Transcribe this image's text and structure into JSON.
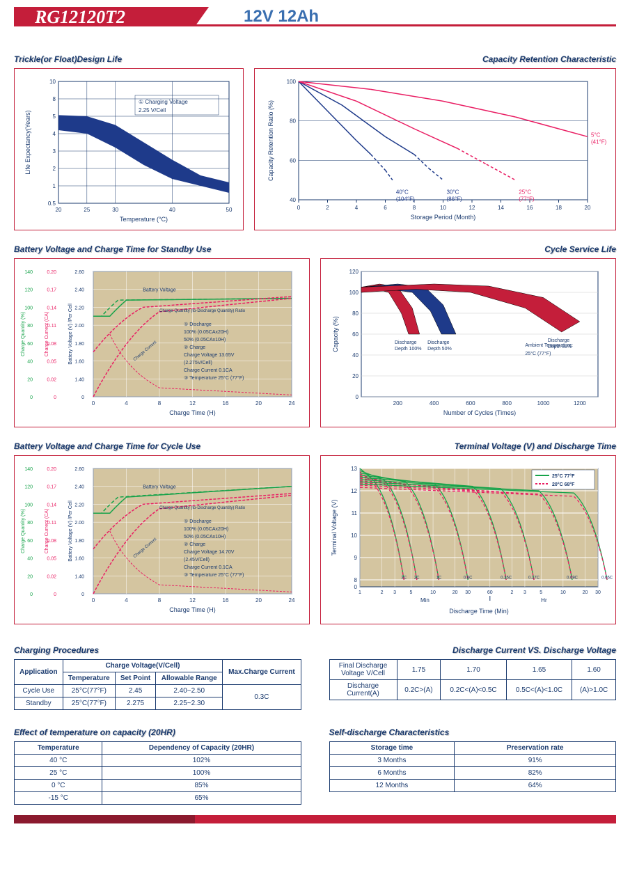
{
  "header": {
    "model": "RG12120T2",
    "spec": "12V 12Ah"
  },
  "chart1": {
    "title": "Trickle(or Float)Design Life",
    "xlabel": "Temperature (°C)",
    "ylabel": "Life Expectancy(Years)",
    "xticks": [
      "20",
      "25",
      "30",
      "40",
      "50"
    ],
    "yticks": [
      "0.5",
      "1",
      "2",
      "3",
      "4",
      "5",
      "8",
      "10"
    ],
    "legend": "① Charging Voltage\n2.25 V/Cell",
    "band_color": "#1e3a8a",
    "upper": [
      [
        20,
        5.2
      ],
      [
        25,
        5
      ],
      [
        30,
        4.5
      ],
      [
        35,
        3.5
      ],
      [
        40,
        2.5
      ],
      [
        45,
        1.6
      ],
      [
        50,
        1.2
      ]
    ],
    "lower": [
      [
        20,
        4.2
      ],
      [
        25,
        4
      ],
      [
        30,
        3.2
      ],
      [
        35,
        2.2
      ],
      [
        40,
        1.4
      ],
      [
        45,
        1.0
      ],
      [
        50,
        0.8
      ]
    ]
  },
  "chart2": {
    "title": "Capacity Retention Characteristic",
    "xlabel": "Storage Period (Month)",
    "ylabel": "Capacity Retention Ratio (%)",
    "xticks": [
      "0",
      "2",
      "4",
      "6",
      "8",
      "10",
      "12",
      "14",
      "16",
      "18",
      "20"
    ],
    "yticks": [
      "40",
      "60",
      "80",
      "100"
    ],
    "lines": [
      {
        "label": "40°C\n(104°F)",
        "color": "#1e3a8a",
        "pts": [
          [
            0,
            100
          ],
          [
            2,
            85
          ],
          [
            4,
            70
          ],
          [
            5,
            63
          ],
          [
            6,
            55
          ],
          [
            6.5,
            50
          ]
        ],
        "dash_after": 5
      },
      {
        "label": "30°C\n(86°F)",
        "color": "#1e3a8a",
        "pts": [
          [
            0,
            100
          ],
          [
            3,
            88
          ],
          [
            6,
            72
          ],
          [
            8,
            63
          ],
          [
            9,
            56
          ],
          [
            10,
            50
          ]
        ],
        "dash_after": 8
      },
      {
        "label": "25°C\n(77°F)",
        "color": "#e91e63",
        "pts": [
          [
            0,
            100
          ],
          [
            4,
            90
          ],
          [
            8,
            76
          ],
          [
            11,
            66
          ],
          [
            13,
            58
          ],
          [
            15,
            50
          ]
        ],
        "dash_after": 11
      },
      {
        "label": "5°C\n(41°F)",
        "color": "#e91e63",
        "pts": [
          [
            0,
            100
          ],
          [
            5,
            96
          ],
          [
            10,
            90
          ],
          [
            15,
            82
          ],
          [
            18,
            76
          ],
          [
            20,
            72
          ]
        ],
        "dash_after": 99
      }
    ]
  },
  "chart3": {
    "title": "Battery Voltage and Charge Time for Standby Use",
    "xlabel": "Charge Time (H)",
    "y1": "Charge Quantity (%)",
    "y2": "Charge Current (CA)",
    "y3": "Battery Voltage (V) /Per Cell",
    "xticks": [
      "0",
      "4",
      "8",
      "12",
      "16",
      "20",
      "24"
    ],
    "y1ticks": [
      "0",
      "20",
      "40",
      "60",
      "80",
      "100",
      "120",
      "140"
    ],
    "y2ticks": [
      "0",
      "0.02",
      "0.05",
      "0.08",
      "0.11",
      "0.14",
      "0.17",
      "0.20"
    ],
    "y3ticks": [
      "0",
      "1.40",
      "1.60",
      "1.80",
      "2.00",
      "2.20",
      "2.40",
      "2.60"
    ],
    "notes": [
      "① Discharge",
      "100% (0.05CAx20H)",
      "50% (0.05CAx10H)",
      "② Charge",
      "Charge Voltage 13.65V",
      "(2.275V/Cell)",
      "Charge Current 0.1CA",
      "③ Temperature 25°C (77°F)"
    ],
    "labels": {
      "bv": "Battery Voltage",
      "cq": "Charge Quantity (to-Discharge Quantity) Ratio",
      "cc": "Charge Current"
    }
  },
  "chart4": {
    "title": "Cycle Service Life",
    "xlabel": "Number of Cycles (Times)",
    "ylabel": "Capacity (%)",
    "xticks": [
      "200",
      "400",
      "600",
      "800",
      "1000",
      "1200"
    ],
    "yticks": [
      "0",
      "20",
      "40",
      "60",
      "80",
      "100",
      "120"
    ],
    "bands": [
      {
        "label": "Discharge\nDepth 100%",
        "color": "#c41e3a",
        "u": [
          [
            0,
            105
          ],
          [
            100,
            108
          ],
          [
            200,
            105
          ],
          [
            280,
            85
          ],
          [
            320,
            60
          ]
        ],
        "l": [
          [
            0,
            100
          ],
          [
            80,
            103
          ],
          [
            150,
            100
          ],
          [
            220,
            80
          ],
          [
            260,
            60
          ]
        ]
      },
      {
        "label": "Discharge\nDepth 50%",
        "color": "#1e3a8a",
        "u": [
          [
            0,
            105
          ],
          [
            200,
            108
          ],
          [
            350,
            105
          ],
          [
            450,
            88
          ],
          [
            520,
            60
          ]
        ],
        "l": [
          [
            0,
            100
          ],
          [
            150,
            103
          ],
          [
            280,
            100
          ],
          [
            380,
            82
          ],
          [
            440,
            60
          ]
        ]
      },
      {
        "label": "Discharge\nDepth 30%",
        "color": "#c41e3a",
        "u": [
          [
            0,
            105
          ],
          [
            400,
            108
          ],
          [
            700,
            106
          ],
          [
            1000,
            95
          ],
          [
            1200,
            72
          ]
        ],
        "l": [
          [
            0,
            100
          ],
          [
            300,
            103
          ],
          [
            600,
            100
          ],
          [
            900,
            85
          ],
          [
            1100,
            62
          ]
        ]
      }
    ],
    "note": "Ambient Temperature:\n25°C (77°F)"
  },
  "chart5": {
    "title": "Battery Voltage and Charge Time for Cycle Use",
    "xlabel": "Charge Time (H)",
    "notes": [
      "① Discharge",
      "100% (0.05CAx20H)",
      "50% (0.05CAx10H)",
      "② Charge",
      "Charge Voltage 14.70V",
      "(2.45V/Cell)",
      "Charge Current 0.1CA",
      "③ Temperature 25°C (77°F)"
    ]
  },
  "chart6": {
    "title": "Terminal Voltage (V) and Discharge Time",
    "xlabel": "Discharge Time (Min)",
    "ylabel": "Terminal Voltage (V)",
    "yticks": [
      "0",
      "8",
      "9",
      "10",
      "11",
      "12",
      "13"
    ],
    "xmin_ticks": [
      "1",
      "2",
      "3",
      "5",
      "10",
      "20",
      "30",
      "60"
    ],
    "xhr_ticks": [
      "2",
      "3",
      "5",
      "10",
      "20",
      "30"
    ],
    "min_label": "Min",
    "hr_label": "Hr",
    "legend": [
      {
        "label": "25°C 77°F",
        "color": "#16a34a",
        "dash": false
      },
      {
        "label": "20°C 68°F",
        "color": "#e91e63",
        "dash": true
      }
    ],
    "curve_labels": [
      "3C",
      "2C",
      "1C",
      "0.6C",
      "0.25C",
      "0.17C",
      "0.09C",
      "0.05C"
    ]
  },
  "table1": {
    "title": "Charging Procedures",
    "headers": {
      "app": "Application",
      "cv": "Charge Voltage(V/Cell)",
      "temp": "Temperature",
      "sp": "Set Point",
      "ar": "Allowable Range",
      "max": "Max.Charge Current"
    },
    "rows": [
      {
        "app": "Cycle Use",
        "temp": "25°C(77°F)",
        "sp": "2.45",
        "ar": "2.40~2.50"
      },
      {
        "app": "Standby",
        "temp": "25°C(77°F)",
        "sp": "2.275",
        "ar": "2.25~2.30"
      }
    ],
    "max": "0.3C"
  },
  "table2": {
    "title": "Discharge Current VS. Discharge Voltage",
    "h1": "Final Discharge\nVoltage V/Cell",
    "h2": "Discharge\nCurrent(A)",
    "volts": [
      "1.75",
      "1.70",
      "1.65",
      "1.60"
    ],
    "curr": [
      "0.2C>(A)",
      "0.2C<(A)<0.5C",
      "0.5C<(A)<1.0C",
      "(A)>1.0C"
    ]
  },
  "table3": {
    "title": "Effect of temperature on capacity (20HR)",
    "h": [
      "Temperature",
      "Dependency of Capacity (20HR)"
    ],
    "rows": [
      [
        "40 °C",
        "102%"
      ],
      [
        "25 °C",
        "100%"
      ],
      [
        "0 °C",
        "85%"
      ],
      [
        "-15 °C",
        "65%"
      ]
    ]
  },
  "table4": {
    "title": "Self-discharge Characteristics",
    "h": [
      "Storage time",
      "Preservation rate"
    ],
    "rows": [
      [
        "3 Months",
        "91%"
      ],
      [
        "6 Months",
        "82%"
      ],
      [
        "12 Months",
        "64%"
      ]
    ]
  }
}
